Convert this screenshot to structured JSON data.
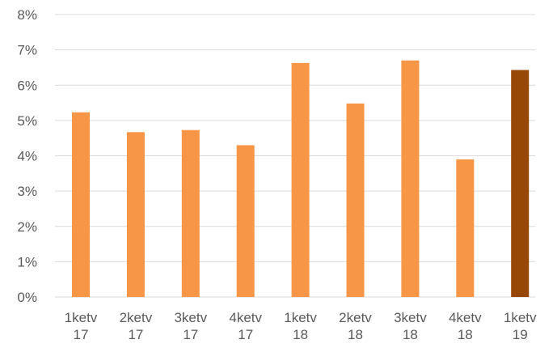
{
  "chart_data": {
    "type": "bar",
    "title": "",
    "xlabel": "",
    "ylabel": "",
    "categories": [
      [
        "1ketv",
        "17"
      ],
      [
        "2ketv",
        "17"
      ],
      [
        "3ketv",
        "17"
      ],
      [
        "4ketv",
        "17"
      ],
      [
        "1ketv",
        "18"
      ],
      [
        "2ketv",
        "18"
      ],
      [
        "3ketv",
        "18"
      ],
      [
        "4ketv",
        "18"
      ],
      [
        "1ketv",
        "19"
      ]
    ],
    "values": [
      5.23,
      4.67,
      4.73,
      4.3,
      6.63,
      5.48,
      6.7,
      3.9,
      6.43
    ],
    "value_unit": "%",
    "ylim": [
      0,
      8
    ],
    "yticks": [
      "0%",
      "1%",
      "2%",
      "3%",
      "4%",
      "5%",
      "6%",
      "7%",
      "8%"
    ],
    "grid": true,
    "legend": "none",
    "colors": {
      "default_bar": "#f79646",
      "highlight_bar": "#974706",
      "grid": "#d9d9d9",
      "text": "#595959"
    },
    "highlight_index": 8
  }
}
